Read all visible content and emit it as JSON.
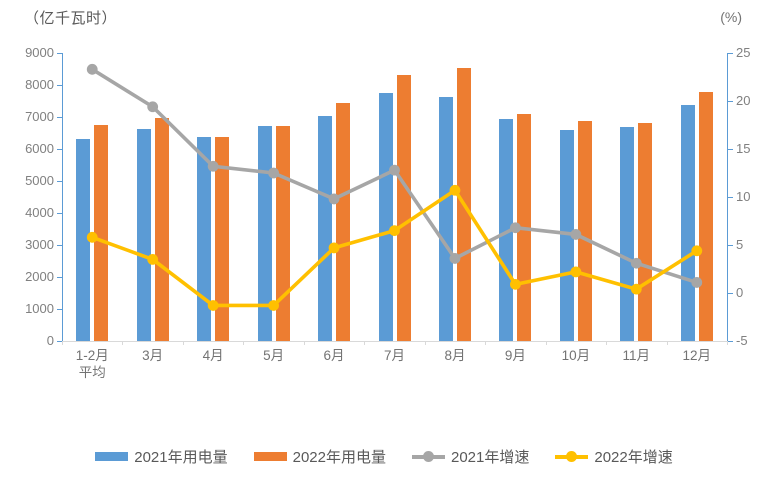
{
  "chart": {
    "left_axis_title": "（亿千瓦时）",
    "right_axis_title": "(%)",
    "colors": {
      "bar_2021": "#5B9BD5",
      "bar_2022": "#ED7D31",
      "line_2021": "#A6A6A6",
      "line_2022": "#FFC000",
      "value_axis_line": "#5B9BD5",
      "category_axis_line": "#D9D9D9",
      "tick_label": "#808080",
      "text": "#595959"
    }
  },
  "chart_data": {
    "type": "bar",
    "subtype": "combo-bar-line-dual-axis",
    "title": "",
    "xlabel": "",
    "ylabel_left": "（亿千瓦时）",
    "ylabel_right": "(%)",
    "categories": [
      "1-2月平均",
      "3月",
      "4月",
      "5月",
      "6月",
      "7月",
      "8月",
      "9月",
      "10月",
      "11月",
      "12月"
    ],
    "x_labels": [
      "1-2月\n平均",
      "3月",
      "4月",
      "5月",
      "6月",
      "7月",
      "8月",
      "9月",
      "10月",
      "11月",
      "12月"
    ],
    "series": [
      {
        "name": "2021年用电量",
        "type": "bar",
        "axis": "left",
        "color": "#5B9BD5",
        "values": [
          6300,
          6630,
          6360,
          6720,
          7030,
          7760,
          7610,
          6950,
          6600,
          6700,
          7370
        ]
      },
      {
        "name": "2022年用电量",
        "type": "bar",
        "axis": "left",
        "color": "#ED7D31",
        "values": [
          6740,
          6970,
          6380,
          6710,
          7450,
          8320,
          8520,
          7100,
          6860,
          6800,
          7780
        ]
      },
      {
        "name": "2021年增速",
        "type": "line",
        "axis": "right",
        "color": "#A6A6A6",
        "values": [
          23.3,
          19.4,
          13.2,
          12.5,
          9.8,
          12.8,
          3.6,
          6.8,
          6.1,
          3.1,
          1.1
        ]
      },
      {
        "name": "2022年增速",
        "type": "line",
        "axis": "right",
        "color": "#FFC000",
        "values": [
          5.8,
          3.5,
          -1.3,
          -1.3,
          4.7,
          6.5,
          10.7,
          0.9,
          2.2,
          0.4,
          4.4
        ]
      }
    ],
    "left_axis": {
      "min": 0,
      "max": 9000,
      "step": 1000
    },
    "right_axis": {
      "min": -5,
      "max": 25,
      "step": 5
    },
    "grid": false,
    "legend_position": "bottom"
  }
}
